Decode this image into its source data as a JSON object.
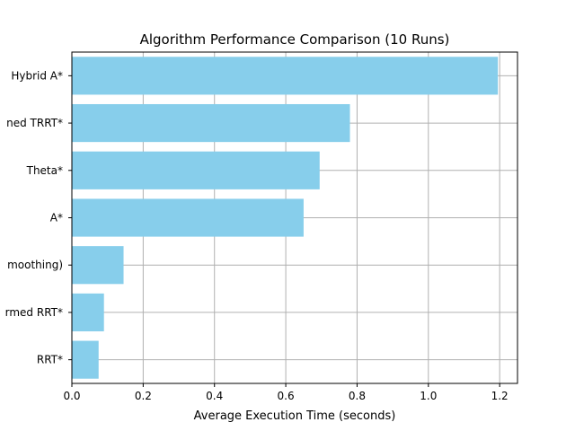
{
  "chart_data": {
    "type": "bar",
    "orientation": "horizontal",
    "title": "Algorithm Performance Comparison (10 Runs)",
    "xlabel": "Average Execution Time (seconds)",
    "ylabel": "",
    "xlim": [
      0,
      1.25
    ],
    "xticks": [
      "0.0",
      "0.2",
      "0.4",
      "0.6",
      "0.8",
      "1.0",
      "1.2"
    ],
    "grid": true,
    "bar_color": "#87ceeb",
    "categories": [
      "RRT*",
      "rmed RRT*",
      "moothing)",
      "A*",
      "Theta*",
      "ned TRRT*",
      "Hybrid A*"
    ],
    "values": [
      0.075,
      0.09,
      0.145,
      0.65,
      0.695,
      0.78,
      1.195
    ]
  }
}
